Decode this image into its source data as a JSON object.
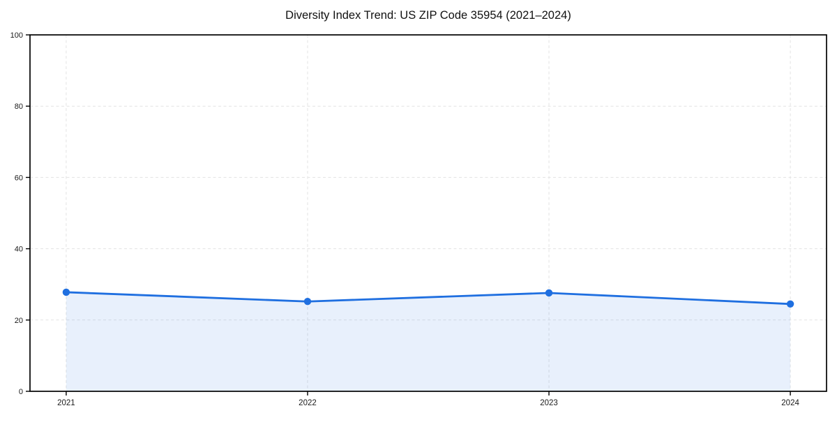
{
  "figure": {
    "title": "Diversity Index Trend: US ZIP Code 35954 (2021–2024)"
  },
  "chart_data": {
    "type": "line",
    "area": true,
    "title": "Diversity Index Trend: US ZIP Code 35954 (2021–2024)",
    "categories": [
      "2021",
      "2022",
      "2023",
      "2024"
    ],
    "series": [
      {
        "name": "Diversity Index",
        "values": [
          27.8,
          25.2,
          27.6,
          24.5
        ]
      }
    ],
    "xlabel": "",
    "ylabel": "",
    "ylim": [
      0,
      100
    ],
    "yticks": [
      0,
      20,
      40,
      60,
      80,
      100
    ],
    "grid": true,
    "grid_style": "dashed",
    "legend": "none",
    "markers": true,
    "colors": {
      "line": "#1f6fe0",
      "marker": "#1f6fe0",
      "fill_opacity": 0.1,
      "grid": "#e3e3e3",
      "axis": "#000000",
      "title_text": "#111111",
      "tick_text": "#1a1a1a",
      "background": "#ffffff"
    }
  }
}
